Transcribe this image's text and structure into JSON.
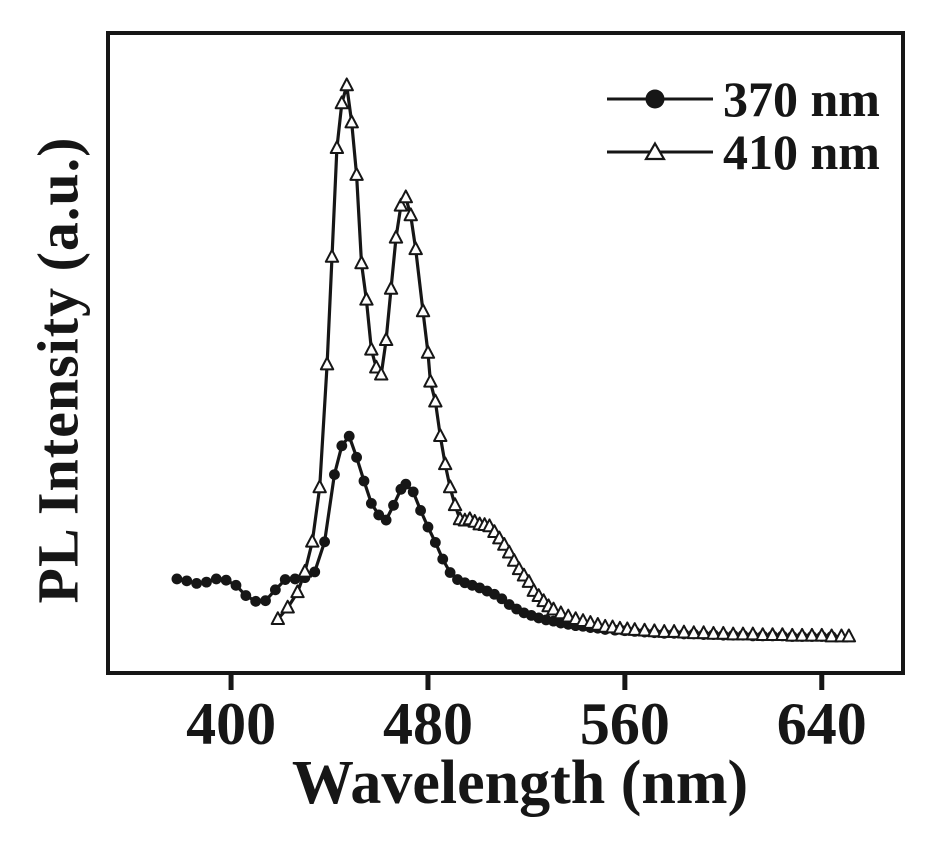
{
  "figure": {
    "background": "#ffffff",
    "ink_color": "#161616"
  },
  "chart_data": {
    "type": "line",
    "title": "",
    "xlabel": "Wavelength (nm)",
    "ylabel": "PL Intensity (a.u.)",
    "xlim": [
      350,
      673
    ],
    "ylim": [
      0,
      1
    ],
    "x_ticks": [
      400,
      480,
      560,
      640
    ],
    "y_ticks": [],
    "grid": false,
    "legend_position": "top-right",
    "legend_items": [
      "370 nm",
      "410 nm"
    ],
    "series": [
      {
        "name": "370 nm",
        "marker": "filled-circle",
        "color": "#161616",
        "points": [
          [
            378,
            0.147
          ],
          [
            382,
            0.144
          ],
          [
            386,
            0.14
          ],
          [
            390,
            0.142
          ],
          [
            394,
            0.147
          ],
          [
            398,
            0.145
          ],
          [
            402,
            0.137
          ],
          [
            406,
            0.121
          ],
          [
            410,
            0.112
          ],
          [
            414,
            0.113
          ],
          [
            418,
            0.13
          ],
          [
            422,
            0.146
          ],
          [
            426,
            0.147
          ],
          [
            430,
            0.149
          ],
          [
            434,
            0.158
          ],
          [
            438,
            0.205
          ],
          [
            442,
            0.31
          ],
          [
            445,
            0.355
          ],
          [
            448,
            0.37
          ],
          [
            451,
            0.337
          ],
          [
            454,
            0.3
          ],
          [
            457,
            0.265
          ],
          [
            460,
            0.247
          ],
          [
            463,
            0.239
          ],
          [
            466,
            0.262
          ],
          [
            469,
            0.287
          ],
          [
            471,
            0.295
          ],
          [
            474,
            0.283
          ],
          [
            477,
            0.254
          ],
          [
            480,
            0.228
          ],
          [
            483,
            0.204
          ],
          [
            486,
            0.178
          ],
          [
            489,
            0.157
          ],
          [
            492,
            0.146
          ],
          [
            495,
            0.141
          ],
          [
            498,
            0.137
          ],
          [
            501,
            0.133
          ],
          [
            504,
            0.128
          ],
          [
            507,
            0.123
          ],
          [
            510,
            0.116
          ],
          [
            513,
            0.107
          ],
          [
            516,
            0.1
          ],
          [
            519,
            0.094
          ],
          [
            522,
            0.09
          ],
          [
            525,
            0.086
          ],
          [
            528,
            0.083
          ],
          [
            531,
            0.081
          ],
          [
            534,
            0.078
          ],
          [
            537,
            0.076
          ],
          [
            540,
            0.074
          ],
          [
            543,
            0.073
          ],
          [
            546,
            0.071
          ],
          [
            549,
            0.07
          ],
          [
            552,
            0.068
          ],
          [
            556,
            0.067
          ],
          [
            560,
            0.066
          ],
          [
            564,
            0.065
          ],
          [
            568,
            0.064
          ],
          [
            572,
            0.063
          ],
          [
            576,
            0.062
          ],
          [
            580,
            0.062
          ],
          [
            584,
            0.061
          ],
          [
            588,
            0.061
          ],
          [
            592,
            0.06
          ],
          [
            596,
            0.06
          ],
          [
            600,
            0.059
          ],
          [
            604,
            0.059
          ],
          [
            608,
            0.059
          ],
          [
            612,
            0.058
          ],
          [
            616,
            0.058
          ],
          [
            620,
            0.058
          ],
          [
            624,
            0.058
          ],
          [
            628,
            0.057
          ],
          [
            632,
            0.057
          ],
          [
            636,
            0.057
          ],
          [
            640,
            0.057
          ],
          [
            644,
            0.057
          ]
        ]
      },
      {
        "name": "410 nm",
        "marker": "open-triangle",
        "color": "#161616",
        "points": [
          [
            419,
            0.084
          ],
          [
            423,
            0.102
          ],
          [
            427,
            0.126
          ],
          [
            430,
            0.158
          ],
          [
            433,
            0.205
          ],
          [
            436,
            0.29
          ],
          [
            439,
            0.482
          ],
          [
            441,
            0.65
          ],
          [
            443,
            0.82
          ],
          [
            445,
            0.89
          ],
          [
            447,
            0.918
          ],
          [
            449,
            0.86
          ],
          [
            451,
            0.778
          ],
          [
            453,
            0.64
          ],
          [
            455,
            0.583
          ],
          [
            457,
            0.505
          ],
          [
            459,
            0.477
          ],
          [
            461,
            0.466
          ],
          [
            463,
            0.52
          ],
          [
            465,
            0.6
          ],
          [
            467,
            0.68
          ],
          [
            469,
            0.73
          ],
          [
            471,
            0.743
          ],
          [
            473,
            0.715
          ],
          [
            475,
            0.662
          ],
          [
            478,
            0.565
          ],
          [
            480,
            0.5
          ],
          [
            481,
            0.455
          ],
          [
            483,
            0.424
          ],
          [
            485,
            0.37
          ],
          [
            487,
            0.326
          ],
          [
            489,
            0.29
          ],
          [
            491,
            0.262
          ],
          [
            493,
            0.24
          ],
          [
            495,
            0.238
          ],
          [
            497,
            0.24
          ],
          [
            499,
            0.236
          ],
          [
            501,
            0.232
          ],
          [
            503,
            0.231
          ],
          [
            505,
            0.229
          ],
          [
            507,
            0.22
          ],
          [
            509,
            0.21
          ],
          [
            511,
            0.2
          ],
          [
            513,
            0.188
          ],
          [
            515,
            0.175
          ],
          [
            517,
            0.162
          ],
          [
            519,
            0.152
          ],
          [
            521,
            0.142
          ],
          [
            523,
            0.128
          ],
          [
            525,
            0.12
          ],
          [
            527,
            0.112
          ],
          [
            529,
            0.104
          ],
          [
            531,
            0.099
          ],
          [
            534,
            0.093
          ],
          [
            537,
            0.088
          ],
          [
            540,
            0.084
          ],
          [
            543,
            0.081
          ],
          [
            546,
            0.078
          ],
          [
            549,
            0.075
          ],
          [
            552,
            0.072
          ],
          [
            555,
            0.071
          ],
          [
            558,
            0.069
          ],
          [
            561,
            0.068
          ],
          [
            564,
            0.067
          ],
          [
            568,
            0.066
          ],
          [
            572,
            0.065
          ],
          [
            576,
            0.064
          ],
          [
            580,
            0.064
          ],
          [
            584,
            0.063
          ],
          [
            588,
            0.062
          ],
          [
            592,
            0.062
          ],
          [
            596,
            0.061
          ],
          [
            600,
            0.061
          ],
          [
            604,
            0.06
          ],
          [
            608,
            0.06
          ],
          [
            612,
            0.06
          ],
          [
            616,
            0.059
          ],
          [
            620,
            0.059
          ],
          [
            624,
            0.059
          ],
          [
            628,
            0.058
          ],
          [
            632,
            0.058
          ],
          [
            636,
            0.058
          ],
          [
            640,
            0.058
          ],
          [
            644,
            0.057
          ],
          [
            648,
            0.057
          ],
          [
            651,
            0.057
          ]
        ]
      }
    ]
  }
}
